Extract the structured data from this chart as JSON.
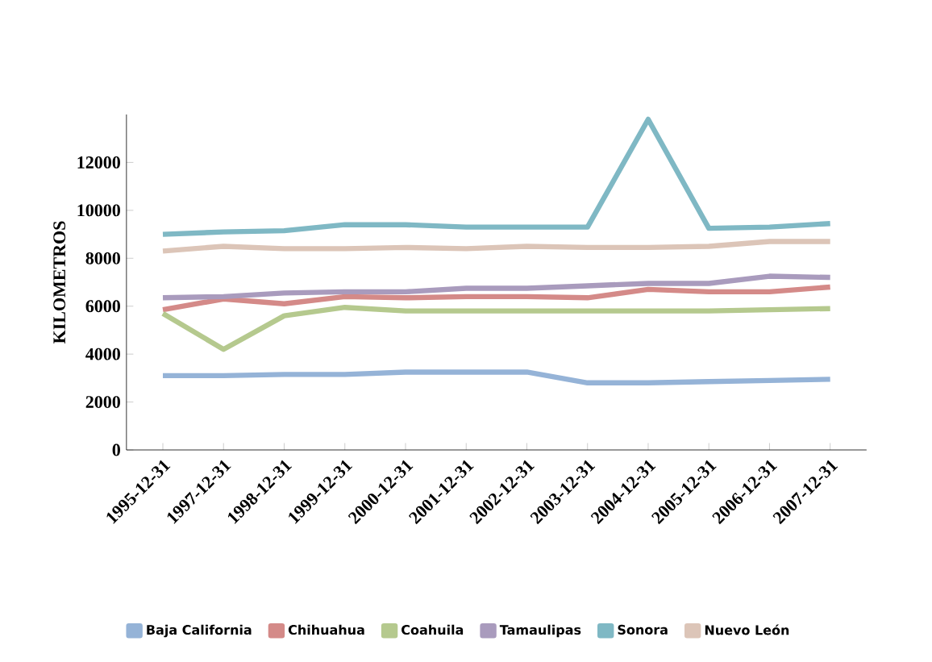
{
  "chart_data": {
    "type": "line",
    "ylabel": "KILOMETROS",
    "categories": [
      "1995-12-31",
      "1997-12-31",
      "1998-12-31",
      "1999-12-31",
      "2000-12-31",
      "2001-12-31",
      "2002-12-31",
      "2003-12-31",
      "2004-12-31",
      "2005-12-31",
      "2006-12-31",
      "2007-12-31"
    ],
    "series": [
      {
        "name": "Baja California",
        "color": "#95b3d7",
        "values": [
          3100,
          3100,
          3150,
          3150,
          3250,
          3250,
          3250,
          2800,
          2800,
          2850,
          2900,
          2950
        ]
      },
      {
        "name": "Chihuahua",
        "color": "#d48a88",
        "values": [
          5850,
          6300,
          6100,
          6400,
          6350,
          6400,
          6400,
          6350,
          6700,
          6600,
          6600,
          6800
        ]
      },
      {
        "name": "Coahuila",
        "color": "#b5c98e",
        "values": [
          5700,
          4200,
          5600,
          5950,
          5800,
          5800,
          5800,
          5800,
          5800,
          5800,
          5850,
          5900
        ]
      },
      {
        "name": "Tamaulipas",
        "color": "#a99bbd",
        "values": [
          6350,
          6400,
          6550,
          6600,
          6600,
          6750,
          6750,
          6850,
          6950,
          6950,
          7250,
          7200
        ]
      },
      {
        "name": "Sonora",
        "color": "#7fb8c4",
        "values": [
          9000,
          9100,
          9150,
          9400,
          9400,
          9300,
          9300,
          9300,
          13800,
          9250,
          9300,
          9450
        ]
      },
      {
        "name": "Nuevo León",
        "color": "#dcc5b8",
        "values": [
          8300,
          8500,
          8400,
          8400,
          8450,
          8400,
          8500,
          8450,
          8450,
          8500,
          8700,
          8700
        ]
      }
    ],
    "ylim": [
      0,
      14000
    ],
    "yticks": [
      0,
      2000,
      4000,
      6000,
      8000,
      10000,
      12000
    ],
    "grid": false,
    "legend": "bottom",
    "marker": "none",
    "line_style": "solid"
  }
}
